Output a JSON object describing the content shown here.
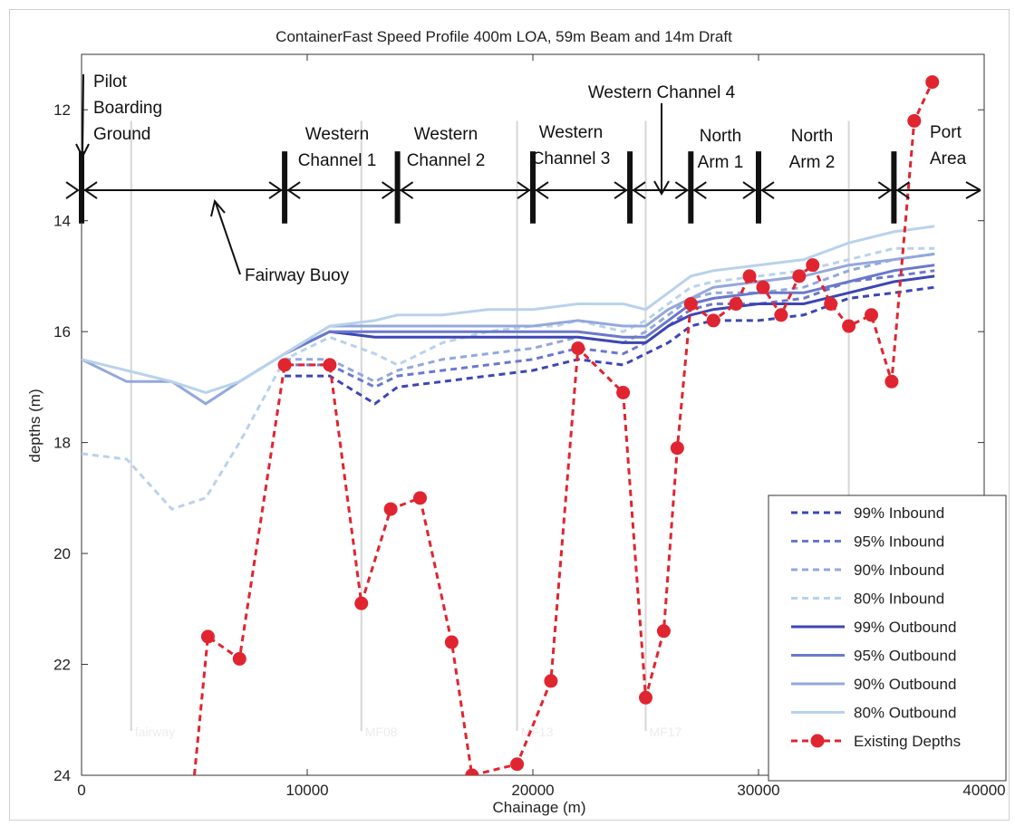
{
  "chart_data": {
    "type": "line",
    "title": "ContainerFast Speed Profile 400m LOA, 59m Beam and 14m Draft",
    "xlabel": "Chainage (m)",
    "ylabel": "depths (m)",
    "xlim": [
      0,
      40000
    ],
    "ylim": [
      24,
      11
    ],
    "y_axis_inverted": true,
    "xticks": [
      0,
      10000,
      20000,
      30000,
      40000
    ],
    "yticks": [
      12,
      14,
      16,
      18,
      20,
      22,
      24
    ],
    "x_tick_labels": [
      "0",
      "10000",
      "20000",
      "30000",
      "40000"
    ],
    "y_tick_labels": [
      "12",
      "14",
      "16",
      "18",
      "20",
      "22",
      "24"
    ],
    "grid": false,
    "legend_position": "bottom-right",
    "segment_boundaries": [
      0,
      9000,
      14000,
      20000,
      24300,
      27000,
      30000,
      36000
    ],
    "segment_labels": [
      {
        "lines": [
          "Pilot",
          "Boarding",
          "Ground"
        ]
      },
      {
        "lines": [
          "Western",
          "Channel 1"
        ]
      },
      {
        "lines": [
          "Western",
          "Channel 2"
        ]
      },
      {
        "lines": [
          "Western",
          "Channel 3"
        ]
      },
      {
        "lines": [
          "Western Channel 4"
        ]
      },
      {
        "lines": [
          "North",
          "Arm 1"
        ]
      },
      {
        "lines": [
          "North",
          "Arm 2"
        ]
      },
      {
        "lines": [
          "Port",
          "Area"
        ]
      },
      {
        "lines": [
          "Fairway Buoy"
        ]
      }
    ],
    "marker_lines": [
      {
        "x": 2200,
        "label": "fairway"
      },
      {
        "x": 12400,
        "label": "MF08"
      },
      {
        "x": 19300,
        "label": "MF13"
      },
      {
        "x": 25000,
        "label": "MF17"
      },
      {
        "x": 34000,
        "label": ""
      }
    ],
    "series": [
      {
        "name": "99% Inbound",
        "style": "dashed",
        "color": "#3d46b4",
        "x": [
          9000,
          11000,
          13000,
          14000,
          16000,
          18000,
          20000,
          22000,
          24000,
          25000,
          26000,
          27000,
          28000,
          30000,
          32000,
          34000,
          36000,
          37800
        ],
        "y": [
          16.8,
          16.8,
          17.3,
          17.0,
          16.9,
          16.8,
          16.7,
          16.5,
          16.6,
          16.4,
          16.2,
          15.9,
          15.8,
          15.8,
          15.7,
          15.4,
          15.3,
          15.2
        ]
      },
      {
        "name": "95% Inbound",
        "style": "dashed",
        "color": "#6a78cc",
        "x": [
          9000,
          11000,
          13000,
          14000,
          16000,
          18000,
          20000,
          22000,
          24000,
          25000,
          26000,
          27000,
          28000,
          30000,
          32000,
          34000,
          36000,
          37800
        ],
        "y": [
          16.6,
          16.6,
          17.0,
          16.8,
          16.7,
          16.6,
          16.5,
          16.3,
          16.4,
          16.2,
          15.9,
          15.6,
          15.5,
          15.5,
          15.4,
          15.1,
          15.0,
          14.9
        ]
      },
      {
        "name": "90% Inbound",
        "style": "dashed",
        "color": "#93a8dc",
        "x": [
          9000,
          11000,
          13000,
          14000,
          16000,
          18000,
          20000,
          22000,
          24000,
          25000,
          26000,
          27000,
          28000,
          30000,
          32000,
          34000,
          36000,
          37800
        ],
        "y": [
          16.5,
          16.5,
          16.9,
          16.7,
          16.5,
          16.4,
          16.3,
          16.1,
          16.2,
          16.0,
          15.7,
          15.4,
          15.3,
          15.3,
          15.2,
          14.9,
          14.7,
          14.6
        ]
      },
      {
        "name": "80% Inbound",
        "style": "dashed",
        "color": "#b9d2ec",
        "x": [
          0,
          2000,
          4000,
          5500,
          7000,
          9000,
          11000,
          13000,
          14000,
          16000,
          18000,
          20000,
          21000,
          22000,
          24000,
          25000,
          26000,
          27000,
          28000,
          30000,
          32000,
          34000,
          36000,
          37800
        ],
        "y": [
          18.2,
          18.3,
          19.2,
          19.0,
          18.0,
          16.5,
          16.1,
          16.4,
          16.6,
          16.2,
          16.0,
          15.9,
          15.9,
          15.8,
          16.0,
          15.8,
          15.5,
          15.2,
          15.1,
          15.0,
          14.9,
          14.7,
          14.5,
          14.5
        ]
      },
      {
        "name": "99% Outbound",
        "style": "solid",
        "color": "#3d46b4",
        "x": [
          9000,
          11000,
          13000,
          14000,
          16000,
          18000,
          20000,
          22000,
          24000,
          25000,
          26000,
          27000,
          28000,
          30000,
          32000,
          34000,
          36000,
          37800
        ],
        "y": [
          16.4,
          16.0,
          16.1,
          16.1,
          16.1,
          16.1,
          16.1,
          16.1,
          16.2,
          16.2,
          15.9,
          15.7,
          15.6,
          15.5,
          15.5,
          15.3,
          15.1,
          15.0
        ]
      },
      {
        "name": "95% Outbound",
        "style": "solid",
        "color": "#6a78cc",
        "x": [
          9000,
          11000,
          13000,
          14000,
          16000,
          18000,
          20000,
          22000,
          24000,
          25000,
          26000,
          27000,
          28000,
          30000,
          32000,
          34000,
          36000,
          37800
        ],
        "y": [
          16.4,
          16.0,
          16.0,
          16.0,
          16.0,
          16.0,
          16.0,
          16.0,
          16.1,
          16.1,
          15.8,
          15.5,
          15.4,
          15.3,
          15.3,
          15.1,
          14.9,
          14.8
        ]
      },
      {
        "name": "90% Outbound",
        "style": "solid",
        "color": "#93a8dc",
        "x": [
          0,
          2000,
          4000,
          5500,
          7000,
          9000,
          11000,
          13000,
          14000,
          16000,
          18000,
          20000,
          22000,
          24000,
          25000,
          26000,
          27000,
          28000,
          30000,
          32000,
          34000,
          36000,
          37800
        ],
        "y": [
          16.5,
          16.9,
          16.9,
          17.3,
          16.9,
          16.4,
          15.9,
          15.9,
          15.9,
          15.9,
          15.9,
          15.9,
          15.8,
          15.9,
          15.9,
          15.6,
          15.4,
          15.2,
          15.1,
          15.0,
          14.8,
          14.7,
          14.6
        ]
      },
      {
        "name": "80% Outbound",
        "style": "solid",
        "color": "#b9d2ec",
        "x": [
          0,
          2000,
          4000,
          5500,
          7000,
          9000,
          11000,
          13000,
          14000,
          16000,
          18000,
          20000,
          22000,
          24000,
          25000,
          26000,
          27000,
          28000,
          30000,
          32000,
          34000,
          36000,
          37800
        ],
        "y": [
          16.5,
          16.7,
          16.9,
          17.1,
          16.9,
          16.4,
          15.9,
          15.8,
          15.7,
          15.7,
          15.6,
          15.6,
          15.5,
          15.5,
          15.6,
          15.3,
          15.0,
          14.9,
          14.8,
          14.7,
          14.4,
          14.2,
          14.1
        ]
      },
      {
        "name": "Existing Depths",
        "style": "dashed-marker",
        "color": "#e02530",
        "x": [
          5000,
          5600,
          7000,
          9000,
          11000,
          12400,
          13700,
          15000,
          16400,
          17300,
          19300,
          20800,
          22000,
          24000,
          25000,
          25800,
          26400,
          27000,
          28000,
          29000,
          29600,
          30200,
          31000,
          31800,
          32400,
          33200,
          34000,
          35000,
          35900,
          36900,
          37700
        ],
        "y": [
          24.0,
          21.5,
          21.9,
          16.6,
          16.6,
          20.9,
          19.2,
          19.0,
          21.6,
          24.0,
          23.8,
          22.3,
          16.3,
          17.1,
          22.6,
          21.4,
          18.1,
          15.5,
          15.8,
          15.5,
          15.0,
          15.2,
          15.7,
          15.0,
          14.8,
          15.5,
          15.9,
          15.7,
          16.9,
          12.2,
          11.5
        ],
        "markers_from_index": 1
      }
    ]
  }
}
